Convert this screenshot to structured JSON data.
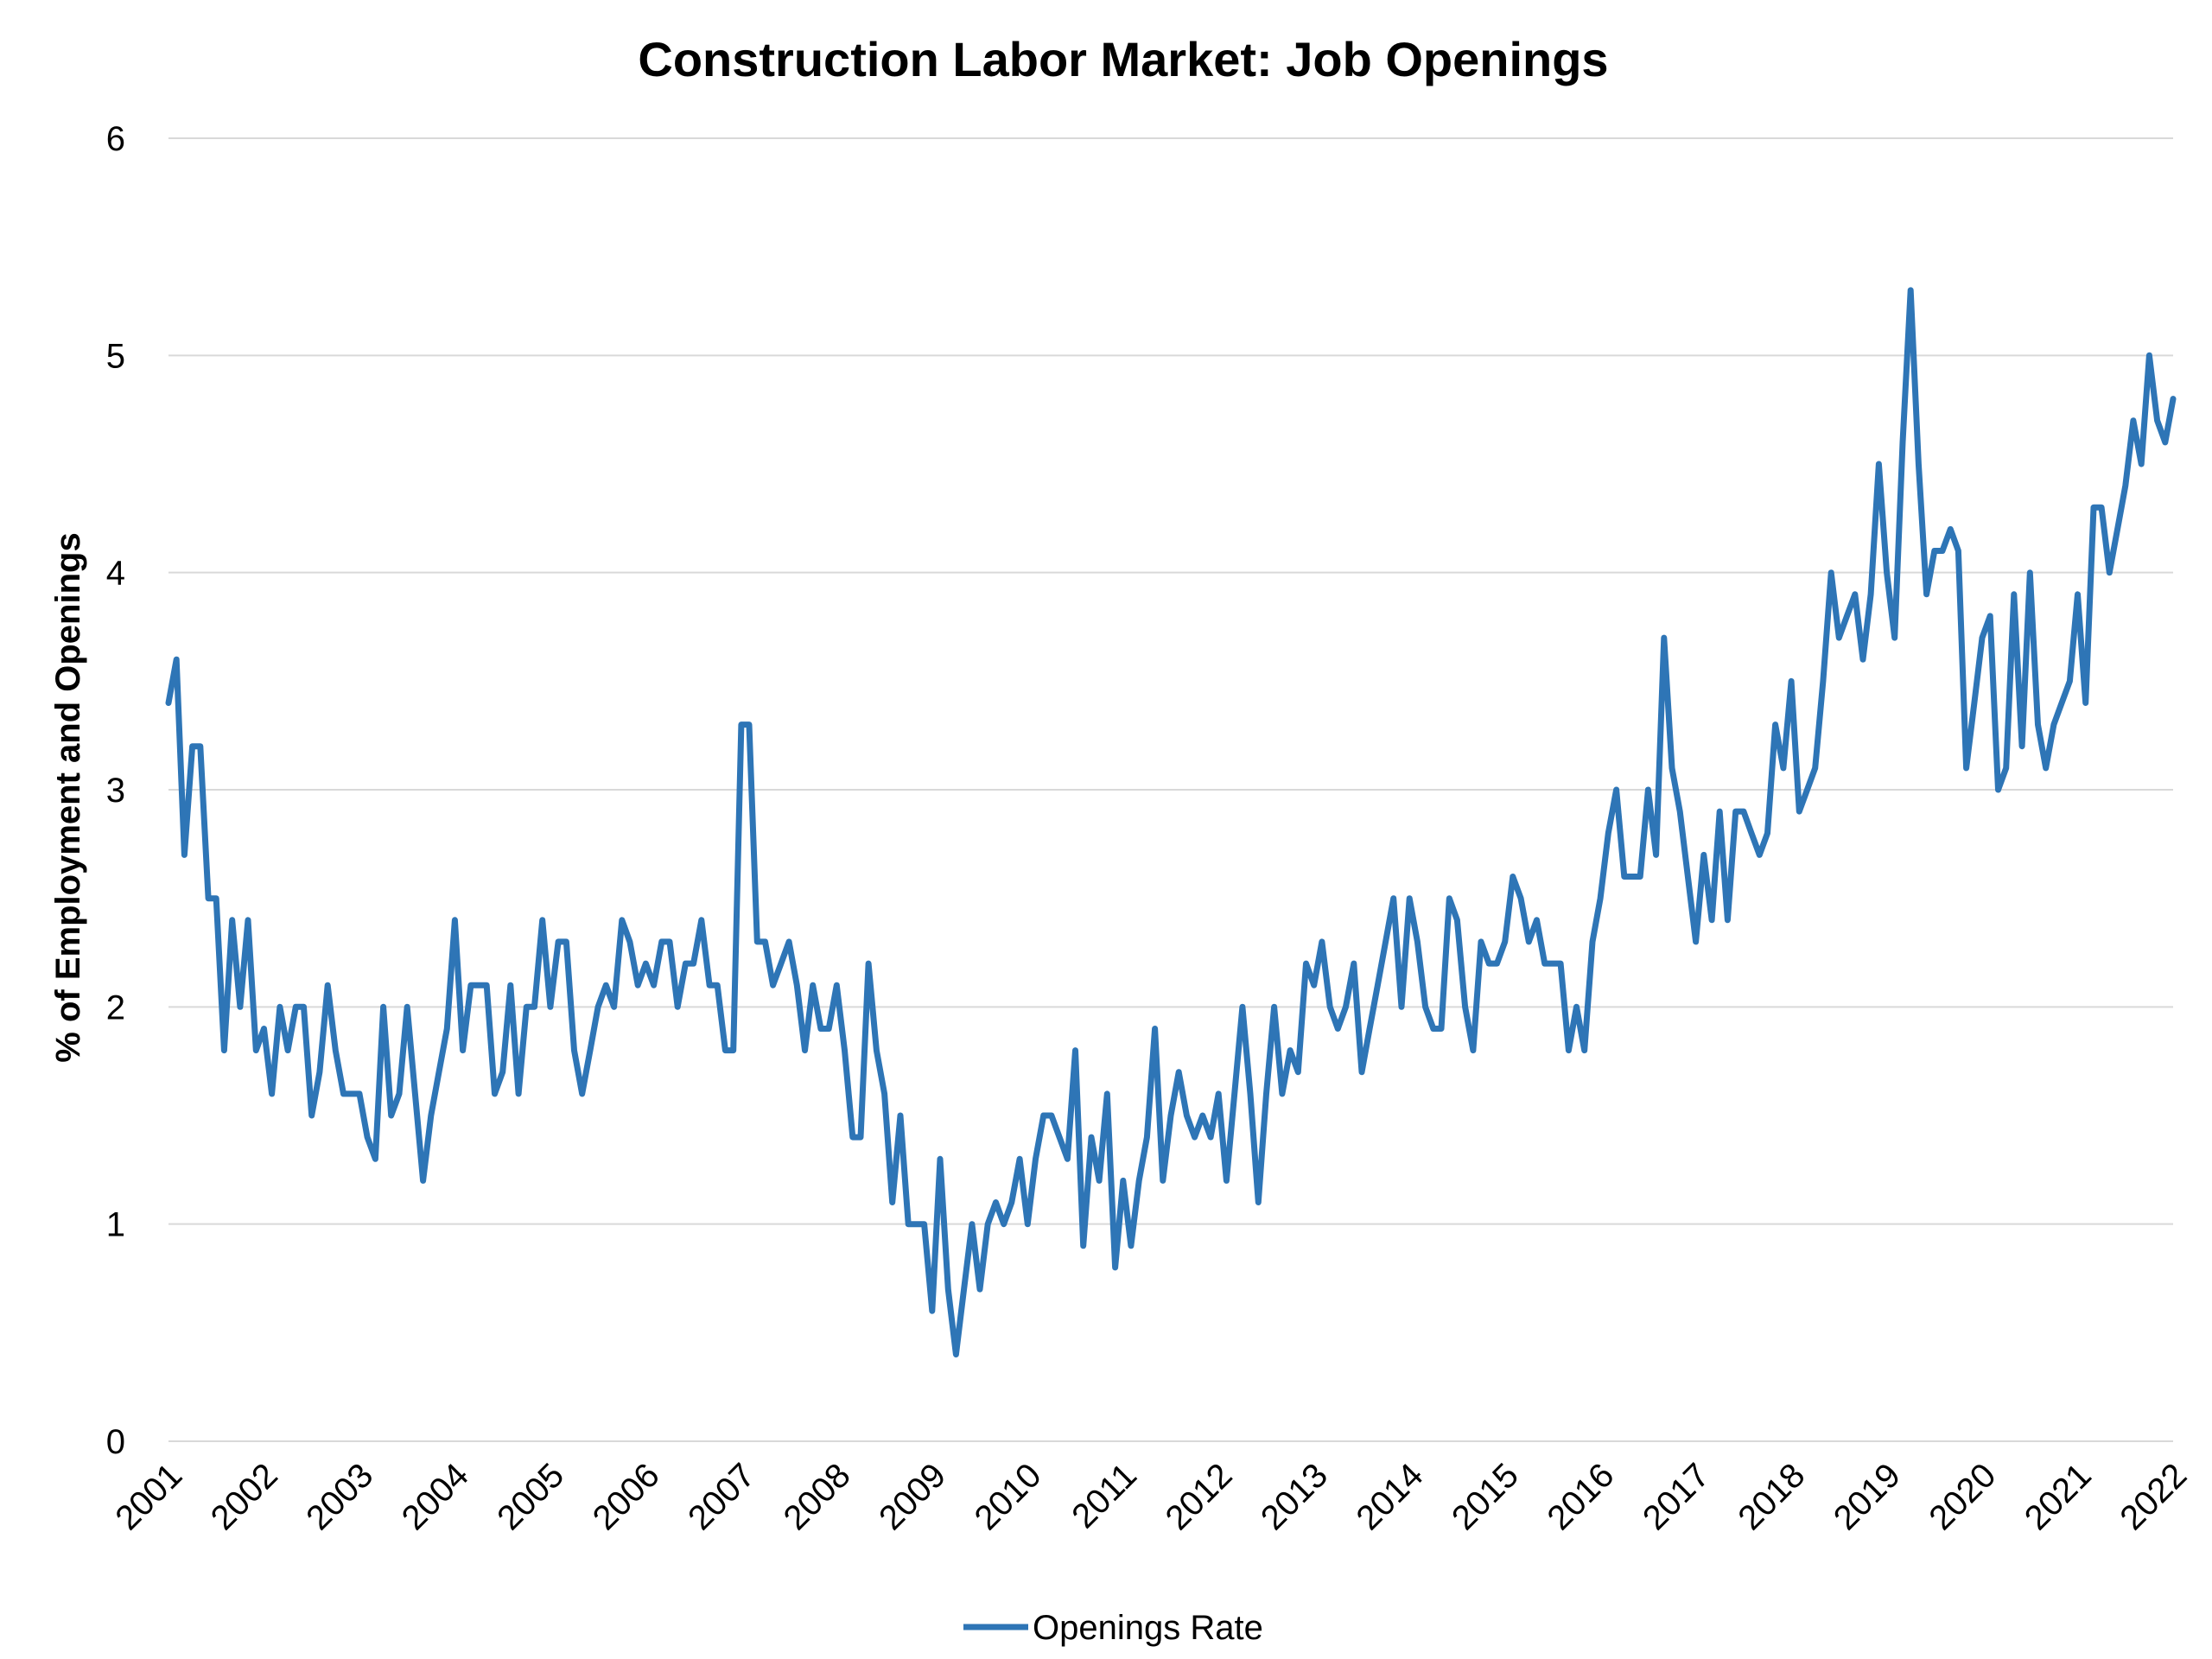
{
  "chart_data": {
    "type": "line",
    "title": "Construction Labor Market: Job Openings",
    "ylabel": "% of Employment and Openings",
    "xlabel": "",
    "ylim": [
      0,
      6
    ],
    "yticks": [
      "0",
      "1",
      "2",
      "3",
      "4",
      "5",
      "6"
    ],
    "xticks": [
      "2001",
      "2002",
      "2003",
      "2004",
      "2005",
      "2006",
      "2007",
      "2008",
      "2009",
      "2010",
      "2011",
      "2012",
      "2013",
      "2014",
      "2015",
      "2016",
      "2017",
      "2018",
      "2019",
      "2020",
      "2021",
      "2022"
    ],
    "xlim": [
      2001,
      2022
    ],
    "grid": "horizontal",
    "legend_position": "bottom",
    "series": [
      {
        "name": "Openings Rate",
        "color": "#2e75b6",
        "x": [
          2001.0,
          2001.083,
          2001.167,
          2001.25,
          2001.333,
          2001.417,
          2001.5,
          2001.583,
          2001.667,
          2001.75,
          2001.833,
          2001.917,
          2002.0,
          2002.083,
          2002.167,
          2002.25,
          2002.333,
          2002.417,
          2002.5,
          2002.583,
          2002.667,
          2002.75,
          2002.833,
          2002.917,
          2003.0,
          2003.083,
          2003.167,
          2003.25,
          2003.333,
          2003.417,
          2003.5,
          2003.583,
          2003.667,
          2003.75,
          2003.833,
          2003.917,
          2004.0,
          2004.083,
          2004.167,
          2004.25,
          2004.333,
          2004.417,
          2004.5,
          2004.583,
          2004.667,
          2004.75,
          2004.833,
          2004.917,
          2005.0,
          2005.083,
          2005.167,
          2005.25,
          2005.333,
          2005.417,
          2005.5,
          2005.583,
          2005.667,
          2005.75,
          2005.833,
          2005.917,
          2006.0,
          2006.083,
          2006.167,
          2006.25,
          2006.333,
          2006.417,
          2006.5,
          2006.583,
          2006.667,
          2006.75,
          2006.833,
          2006.917,
          2007.0,
          2007.083,
          2007.167,
          2007.25,
          2007.333,
          2007.417,
          2007.5,
          2007.583,
          2007.667,
          2007.75,
          2007.833,
          2007.917,
          2008.0,
          2008.083,
          2008.167,
          2008.25,
          2008.333,
          2008.417,
          2008.5,
          2008.583,
          2008.667,
          2008.75,
          2008.833,
          2008.917,
          2009.0,
          2009.083,
          2009.167,
          2009.25,
          2009.333,
          2009.417,
          2009.5,
          2009.583,
          2009.667,
          2009.75,
          2009.833,
          2009.917,
          2010.0,
          2010.083,
          2010.167,
          2010.25,
          2010.333,
          2010.417,
          2010.5,
          2010.583,
          2010.667,
          2010.75,
          2010.833,
          2010.917,
          2011.0,
          2011.083,
          2011.167,
          2011.25,
          2011.333,
          2011.417,
          2011.5,
          2011.583,
          2011.667,
          2011.75,
          2011.833,
          2011.917,
          2012.0,
          2012.083,
          2012.167,
          2012.25,
          2012.333,
          2012.417,
          2012.5,
          2012.583,
          2012.667,
          2012.75,
          2012.833,
          2012.917,
          2013.0,
          2013.083,
          2013.167,
          2013.25,
          2013.333,
          2013.417,
          2013.5,
          2013.583,
          2013.667,
          2013.75,
          2013.833,
          2013.917,
          2014.0,
          2014.083,
          2014.167,
          2014.25,
          2014.333,
          2014.417,
          2014.5,
          2014.583,
          2014.667,
          2014.75,
          2014.833,
          2014.917,
          2015.0,
          2015.083,
          2015.167,
          2015.25,
          2015.333,
          2015.417,
          2015.5,
          2015.583,
          2015.667,
          2015.75,
          2015.833,
          2015.917,
          2016.0,
          2016.083,
          2016.167,
          2016.25,
          2016.333,
          2016.417,
          2016.5,
          2016.583,
          2016.667,
          2016.75,
          2016.833,
          2016.917,
          2017.0,
          2017.083,
          2017.167,
          2017.25,
          2017.333,
          2017.417,
          2017.5,
          2017.583,
          2017.667,
          2017.75,
          2017.833,
          2017.917,
          2018.0,
          2018.083,
          2018.167,
          2018.25,
          2018.333,
          2018.417,
          2018.5,
          2018.583,
          2018.667,
          2018.75,
          2018.833,
          2018.917,
          2019.0,
          2019.083,
          2019.167,
          2019.25,
          2019.333,
          2019.417,
          2019.5,
          2019.583,
          2019.667,
          2019.75,
          2019.833,
          2019.917,
          2020.0,
          2020.083,
          2020.167,
          2020.25,
          2020.333,
          2020.417,
          2020.5,
          2020.583,
          2020.667,
          2020.75,
          2020.833,
          2020.917,
          2021.0,
          2021.083,
          2021.167,
          2021.25,
          2021.333,
          2021.417,
          2021.5,
          2021.583,
          2021.667,
          2021.75,
          2021.833,
          2021.917,
          2022.0
        ],
        "y": [
          3.4,
          3.6,
          2.7,
          3.2,
          3.2,
          2.5,
          2.5,
          1.8,
          2.4,
          2.0,
          2.4,
          1.8,
          1.9,
          1.6,
          2.0,
          1.8,
          2.0,
          2.0,
          1.5,
          1.7,
          2.1,
          1.8,
          1.6,
          1.6,
          1.6,
          1.4,
          1.3,
          2.0,
          1.5,
          1.6,
          2.0,
          1.6,
          1.2,
          1.5,
          1.7,
          1.9,
          2.4,
          1.8,
          2.1,
          2.1,
          2.1,
          1.6,
          1.7,
          2.1,
          1.6,
          2.0,
          2.0,
          2.4,
          2.0,
          2.3,
          2.3,
          1.8,
          1.6,
          1.8,
          2.0,
          2.1,
          2.0,
          2.4,
          2.3,
          2.1,
          2.2,
          2.1,
          2.3,
          2.3,
          2.0,
          2.2,
          2.2,
          2.4,
          2.1,
          2.1,
          1.8,
          1.8,
          3.3,
          3.3,
          2.3,
          2.3,
          2.1,
          2.2,
          2.3,
          2.1,
          1.8,
          2.1,
          1.9,
          1.9,
          2.1,
          1.8,
          1.4,
          1.4,
          2.2,
          1.8,
          1.6,
          1.1,
          1.5,
          1.0,
          1.0,
          1.0,
          0.6,
          1.3,
          0.7,
          0.4,
          0.7,
          1.0,
          0.7,
          1.0,
          1.1,
          1.0,
          1.1,
          1.3,
          1.0,
          1.3,
          1.5,
          1.5,
          1.4,
          1.3,
          1.8,
          0.9,
          1.4,
          1.2,
          1.6,
          0.8,
          1.2,
          0.9,
          1.2,
          1.4,
          1.9,
          1.2,
          1.5,
          1.7,
          1.5,
          1.4,
          1.5,
          1.4,
          1.6,
          1.2,
          1.6,
          2.0,
          1.6,
          1.1,
          1.6,
          2.0,
          1.6,
          1.8,
          1.7,
          2.2,
          2.1,
          2.3,
          2.0,
          1.9,
          2.0,
          2.2,
          1.7,
          1.9,
          2.1,
          2.3,
          2.5,
          2.0,
          2.5,
          2.3,
          2.0,
          1.9,
          1.9,
          2.5,
          2.4,
          2.0,
          1.8,
          2.3,
          2.2,
          2.2,
          2.3,
          2.6,
          2.5,
          2.3,
          2.4,
          2.2,
          2.2,
          2.2,
          1.8,
          2.0,
          1.8,
          2.3,
          2.5,
          2.8,
          3.0,
          2.6,
          2.6,
          2.6,
          3.0,
          2.7,
          3.7,
          3.1,
          2.9,
          2.6,
          2.3,
          2.7,
          2.4,
          2.9,
          2.4,
          2.9,
          2.9,
          2.8,
          2.7,
          2.8,
          3.3,
          3.1,
          3.5,
          2.9,
          3.0,
          3.1,
          3.5,
          4.0,
          3.7,
          3.8,
          3.9,
          3.6,
          3.9,
          4.5,
          4.0,
          3.7,
          4.6,
          5.3,
          4.5,
          3.9,
          4.1,
          4.1,
          4.2,
          4.1,
          3.1,
          3.4,
          3.7,
          3.8,
          3.0,
          3.1,
          3.9,
          3.2,
          4.0,
          3.3,
          3.1,
          3.3,
          3.4,
          3.5,
          3.9,
          3.4,
          4.3,
          4.3,
          4.0,
          4.2,
          4.4,
          4.7,
          4.5,
          5.0,
          4.7,
          4.6,
          4.8
        ]
      }
    ]
  }
}
